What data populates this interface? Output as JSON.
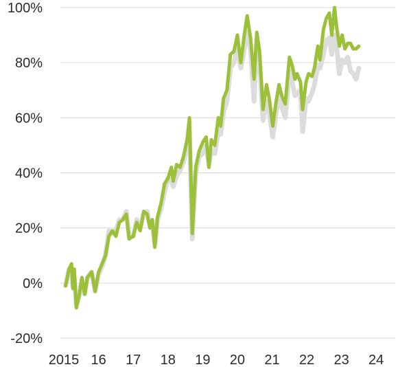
{
  "chart_data": {
    "type": "line",
    "title": "",
    "xlabel": "",
    "ylabel": "",
    "ylim": [
      -20,
      100
    ],
    "xlim": [
      2014.9,
      2024.55
    ],
    "grid": true,
    "legend": "none",
    "y_ticks": [
      {
        "value": 100,
        "label": "100%"
      },
      {
        "value": 80,
        "label": "80%"
      },
      {
        "value": 60,
        "label": "60%"
      },
      {
        "value": 40,
        "label": "40%"
      },
      {
        "value": 20,
        "label": "20%"
      },
      {
        "value": 0,
        "label": "0%"
      },
      {
        "value": -20,
        "label": "-20%"
      }
    ],
    "x_ticks": [
      {
        "value": 2015.0,
        "label": "2015"
      },
      {
        "value": 2016.0,
        "label": "16"
      },
      {
        "value": 2017.0,
        "label": "17"
      },
      {
        "value": 2018.0,
        "label": "18"
      },
      {
        "value": 2019.0,
        "label": "19"
      },
      {
        "value": 2020.0,
        "label": "20"
      },
      {
        "value": 2021.0,
        "label": "21"
      },
      {
        "value": 2022.0,
        "label": "22"
      },
      {
        "value": 2023.0,
        "label": "23"
      },
      {
        "value": 2024.0,
        "label": "24"
      }
    ],
    "series": [
      {
        "color": "#dcdcdc",
        "points": [
          [
            2015.05,
            -1
          ],
          [
            2015.15,
            5
          ],
          [
            2015.22,
            6
          ],
          [
            2015.26,
            -1
          ],
          [
            2015.3,
            2
          ],
          [
            2015.36,
            -8
          ],
          [
            2015.45,
            -4
          ],
          [
            2015.52,
            1
          ],
          [
            2015.6,
            -4
          ],
          [
            2015.68,
            2
          ],
          [
            2015.8,
            4
          ],
          [
            2015.9,
            -3
          ],
          [
            2016.0,
            3
          ],
          [
            2016.1,
            6
          ],
          [
            2016.2,
            10
          ],
          [
            2016.3,
            19
          ],
          [
            2016.4,
            18
          ],
          [
            2016.5,
            19
          ],
          [
            2016.6,
            23
          ],
          [
            2016.7,
            23
          ],
          [
            2016.8,
            26
          ],
          [
            2016.88,
            17
          ],
          [
            2017.0,
            17
          ],
          [
            2017.1,
            23
          ],
          [
            2017.2,
            20
          ],
          [
            2017.3,
            25
          ],
          [
            2017.4,
            26
          ],
          [
            2017.48,
            21
          ],
          [
            2017.55,
            21
          ],
          [
            2017.62,
            14
          ],
          [
            2017.7,
            23
          ],
          [
            2017.8,
            27
          ],
          [
            2017.9,
            33
          ],
          [
            2018.0,
            38
          ],
          [
            2018.1,
            37
          ],
          [
            2018.15,
            35
          ],
          [
            2018.25,
            39
          ],
          [
            2018.35,
            41
          ],
          [
            2018.45,
            44
          ],
          [
            2018.55,
            49
          ],
          [
            2018.62,
            55
          ],
          [
            2018.7,
            16
          ],
          [
            2018.8,
            40
          ],
          [
            2018.9,
            46
          ],
          [
            2019.0,
            47
          ],
          [
            2019.1,
            50
          ],
          [
            2019.18,
            43
          ],
          [
            2019.25,
            48
          ],
          [
            2019.35,
            47
          ],
          [
            2019.45,
            55
          ],
          [
            2019.52,
            54
          ],
          [
            2019.6,
            62
          ],
          [
            2019.7,
            66
          ],
          [
            2019.8,
            78
          ],
          [
            2019.9,
            80
          ],
          [
            2020.0,
            85
          ],
          [
            2020.1,
            78
          ],
          [
            2020.2,
            85
          ],
          [
            2020.28,
            91
          ],
          [
            2020.38,
            85
          ],
          [
            2020.48,
            66
          ],
          [
            2020.56,
            88
          ],
          [
            2020.64,
            80
          ],
          [
            2020.74,
            59
          ],
          [
            2020.84,
            66
          ],
          [
            2020.92,
            62
          ],
          [
            2021.02,
            53
          ],
          [
            2021.12,
            62
          ],
          [
            2021.2,
            68
          ],
          [
            2021.28,
            64
          ],
          [
            2021.38,
            60
          ],
          [
            2021.5,
            77
          ],
          [
            2021.58,
            73
          ],
          [
            2021.66,
            68
          ],
          [
            2021.72,
            69
          ],
          [
            2021.82,
            70
          ],
          [
            2021.88,
            55
          ],
          [
            2021.98,
            67
          ],
          [
            2022.05,
            66
          ],
          [
            2022.15,
            69
          ],
          [
            2022.22,
            72
          ],
          [
            2022.32,
            79
          ],
          [
            2022.38,
            78
          ],
          [
            2022.48,
            83
          ],
          [
            2022.56,
            88
          ],
          [
            2022.65,
            89
          ],
          [
            2022.72,
            83
          ],
          [
            2022.8,
            90
          ],
          [
            2022.86,
            86
          ],
          [
            2022.94,
            76
          ],
          [
            2023.02,
            81
          ],
          [
            2023.1,
            80
          ],
          [
            2023.18,
            82
          ],
          [
            2023.26,
            77
          ],
          [
            2023.34,
            76
          ],
          [
            2023.42,
            74
          ],
          [
            2023.5,
            78
          ]
        ]
      },
      {
        "color": "#9dc03b",
        "points": [
          [
            2015.05,
            -1
          ],
          [
            2015.15,
            5
          ],
          [
            2015.22,
            7
          ],
          [
            2015.26,
            -2
          ],
          [
            2015.3,
            5
          ],
          [
            2015.36,
            -9
          ],
          [
            2015.45,
            -4
          ],
          [
            2015.52,
            2
          ],
          [
            2015.6,
            -4
          ],
          [
            2015.68,
            2
          ],
          [
            2015.8,
            4
          ],
          [
            2015.9,
            -3
          ],
          [
            2016.0,
            4
          ],
          [
            2016.1,
            7
          ],
          [
            2016.2,
            10
          ],
          [
            2016.3,
            17
          ],
          [
            2016.4,
            19
          ],
          [
            2016.5,
            17
          ],
          [
            2016.6,
            22
          ],
          [
            2016.7,
            23
          ],
          [
            2016.8,
            25
          ],
          [
            2016.88,
            16
          ],
          [
            2017.0,
            17
          ],
          [
            2017.1,
            22
          ],
          [
            2017.2,
            19
          ],
          [
            2017.3,
            26
          ],
          [
            2017.4,
            25
          ],
          [
            2017.48,
            20
          ],
          [
            2017.55,
            23
          ],
          [
            2017.62,
            13
          ],
          [
            2017.7,
            24
          ],
          [
            2017.8,
            29
          ],
          [
            2017.9,
            36
          ],
          [
            2018.0,
            38
          ],
          [
            2018.1,
            42
          ],
          [
            2018.15,
            37
          ],
          [
            2018.25,
            43
          ],
          [
            2018.35,
            42
          ],
          [
            2018.45,
            46
          ],
          [
            2018.55,
            52
          ],
          [
            2018.62,
            60
          ],
          [
            2018.7,
            18
          ],
          [
            2018.8,
            42
          ],
          [
            2018.9,
            48
          ],
          [
            2019.0,
            51
          ],
          [
            2019.1,
            53
          ],
          [
            2019.18,
            42
          ],
          [
            2019.25,
            52
          ],
          [
            2019.35,
            50
          ],
          [
            2019.45,
            60
          ],
          [
            2019.52,
            57
          ],
          [
            2019.6,
            67
          ],
          [
            2019.7,
            70
          ],
          [
            2019.8,
            83
          ],
          [
            2019.9,
            84
          ],
          [
            2020.0,
            90
          ],
          [
            2020.1,
            80
          ],
          [
            2020.2,
            90
          ],
          [
            2020.28,
            97
          ],
          [
            2020.38,
            89
          ],
          [
            2020.48,
            74
          ],
          [
            2020.56,
            91
          ],
          [
            2020.64,
            84
          ],
          [
            2020.74,
            63
          ],
          [
            2020.84,
            72
          ],
          [
            2020.92,
            67
          ],
          [
            2021.02,
            57
          ],
          [
            2021.12,
            66
          ],
          [
            2021.2,
            72
          ],
          [
            2021.28,
            68
          ],
          [
            2021.38,
            65
          ],
          [
            2021.5,
            82
          ],
          [
            2021.58,
            79
          ],
          [
            2021.66,
            74
          ],
          [
            2021.72,
            76
          ],
          [
            2021.82,
            73
          ],
          [
            2021.88,
            63
          ],
          [
            2021.98,
            73
          ],
          [
            2022.05,
            76
          ],
          [
            2022.15,
            75
          ],
          [
            2022.22,
            78
          ],
          [
            2022.32,
            86
          ],
          [
            2022.38,
            81
          ],
          [
            2022.48,
            92
          ],
          [
            2022.56,
            96
          ],
          [
            2022.65,
            98
          ],
          [
            2022.72,
            90
          ],
          [
            2022.8,
            100
          ],
          [
            2022.86,
            93
          ],
          [
            2022.94,
            86
          ],
          [
            2023.02,
            90
          ],
          [
            2023.1,
            85
          ],
          [
            2023.18,
            87
          ],
          [
            2023.26,
            87
          ],
          [
            2023.34,
            85
          ],
          [
            2023.42,
            85
          ],
          [
            2023.5,
            86
          ]
        ]
      }
    ]
  }
}
